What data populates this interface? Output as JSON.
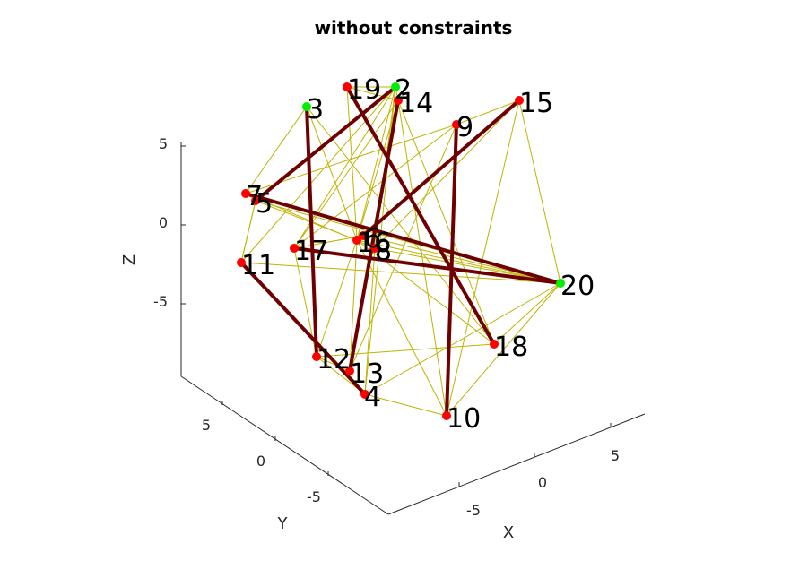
{
  "chart_data": {
    "type": "scatter",
    "title": "without constraints",
    "xlabel": "X",
    "ylabel": "Y",
    "zlabel": "Z",
    "x_ticks": [
      "-5",
      "0",
      "5"
    ],
    "y_ticks": [
      "-5",
      "0",
      "5"
    ],
    "z_ticks": [
      "-5",
      "0",
      "5"
    ],
    "grid": false,
    "colors": {
      "node": "#ff0000",
      "anchor_node": "#00ee00",
      "thin_edge": "#bdb400",
      "thick_edge": "#6e0000",
      "axis": "#262626"
    },
    "nodes": [
      {
        "id": "2",
        "anchor": true
      },
      {
        "id": "3",
        "anchor": true
      },
      {
        "id": "4",
        "anchor": false
      },
      {
        "id": "5",
        "anchor": false
      },
      {
        "id": "6",
        "anchor": false
      },
      {
        "id": "7",
        "anchor": false
      },
      {
        "id": "8",
        "anchor": false
      },
      {
        "id": "9",
        "anchor": false
      },
      {
        "id": "10",
        "anchor": false
      },
      {
        "id": "11",
        "anchor": false
      },
      {
        "id": "12",
        "anchor": false
      },
      {
        "id": "13",
        "anchor": false
      },
      {
        "id": "14",
        "anchor": false
      },
      {
        "id": "15",
        "anchor": false
      },
      {
        "id": "16",
        "anchor": false
      },
      {
        "id": "17",
        "anchor": false
      },
      {
        "id": "18",
        "anchor": false
      },
      {
        "id": "19",
        "anchor": false
      },
      {
        "id": "20",
        "anchor": true
      }
    ],
    "thin_edges": [
      [
        "2",
        "19"
      ],
      [
        "2",
        "14"
      ],
      [
        "2",
        "4"
      ],
      [
        "2",
        "8"
      ],
      [
        "2",
        "16"
      ],
      [
        "2",
        "11"
      ],
      [
        "2",
        "17"
      ],
      [
        "19",
        "14"
      ],
      [
        "19",
        "16"
      ],
      [
        "3",
        "7"
      ],
      [
        "3",
        "16"
      ],
      [
        "3",
        "18"
      ],
      [
        "14",
        "18"
      ],
      [
        "14",
        "10"
      ],
      [
        "14",
        "16"
      ],
      [
        "14",
        "17"
      ],
      [
        "15",
        "9"
      ],
      [
        "15",
        "6"
      ],
      [
        "15",
        "10"
      ],
      [
        "15",
        "20"
      ],
      [
        "15",
        "8"
      ],
      [
        "9",
        "13"
      ],
      [
        "9",
        "17"
      ],
      [
        "9",
        "7"
      ],
      [
        "7",
        "20"
      ],
      [
        "7",
        "5"
      ],
      [
        "7",
        "8"
      ],
      [
        "5",
        "20"
      ],
      [
        "5",
        "16"
      ],
      [
        "5",
        "11"
      ],
      [
        "16",
        "20"
      ],
      [
        "16",
        "12"
      ],
      [
        "16",
        "18"
      ],
      [
        "8",
        "20"
      ],
      [
        "8",
        "4"
      ],
      [
        "17",
        "20"
      ],
      [
        "17",
        "12"
      ],
      [
        "11",
        "20"
      ],
      [
        "11",
        "5"
      ],
      [
        "12",
        "18"
      ],
      [
        "12",
        "13"
      ],
      [
        "13",
        "16"
      ],
      [
        "4",
        "20"
      ],
      [
        "4",
        "10"
      ],
      [
        "4",
        "12"
      ],
      [
        "10",
        "20"
      ],
      [
        "10",
        "16"
      ],
      [
        "18",
        "20"
      ],
      [
        "6",
        "20"
      ],
      [
        "6",
        "17"
      ]
    ],
    "thick_edges": [
      [
        "3",
        "12"
      ],
      [
        "19",
        "18"
      ],
      [
        "14",
        "13"
      ],
      [
        "9",
        "10"
      ],
      [
        "15",
        "6"
      ],
      [
        "7",
        "20"
      ],
      [
        "17",
        "20"
      ],
      [
        "11",
        "4"
      ],
      [
        "5",
        "2"
      ]
    ]
  }
}
